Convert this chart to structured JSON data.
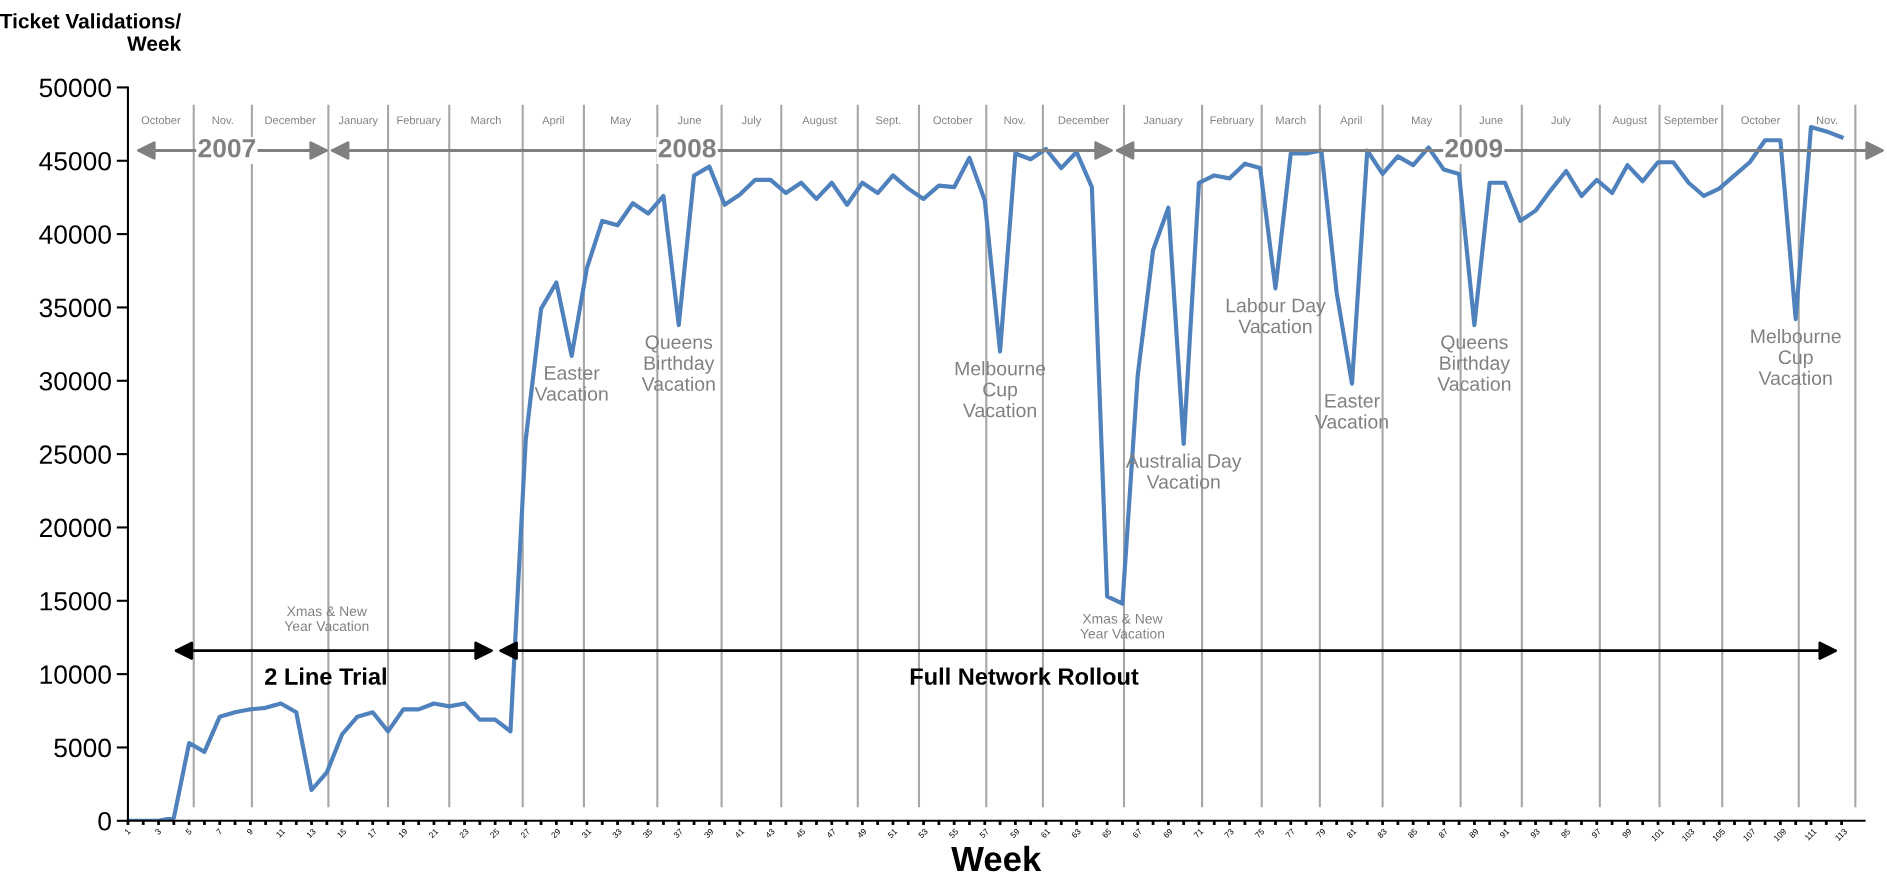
{
  "chart_data": {
    "type": "line",
    "ylabel": "Ticket Validations/\nWeek",
    "xlabel": "Week",
    "x": [
      1,
      2,
      3,
      4,
      5,
      6,
      7,
      8,
      9,
      10,
      11,
      12,
      13,
      14,
      15,
      16,
      17,
      18,
      19,
      20,
      21,
      22,
      23,
      24,
      25,
      26,
      27,
      28,
      29,
      30,
      31,
      32,
      33,
      34,
      35,
      36,
      37,
      38,
      39,
      40,
      41,
      42,
      43,
      44,
      45,
      46,
      47,
      48,
      49,
      50,
      51,
      52,
      53,
      54,
      55,
      56,
      57,
      58,
      59,
      60,
      61,
      62,
      63,
      64,
      65,
      66,
      67,
      68,
      69,
      70,
      71,
      72,
      73,
      74,
      75,
      76,
      77,
      78,
      79,
      80,
      81,
      82,
      83,
      84,
      85,
      86,
      87,
      88,
      89,
      90,
      91,
      92,
      93,
      94,
      95,
      96,
      97,
      98,
      99,
      100,
      101,
      102,
      103,
      104,
      105,
      106,
      107,
      108,
      109,
      110,
      111,
      112,
      113
    ],
    "series": [
      {
        "color": "#4f81bd",
        "values": [
          0,
          0,
          0,
          200,
          5300,
          4700,
          7100,
          7400,
          7600,
          7700,
          8000,
          7400,
          2100,
          3300,
          5900,
          7100,
          7400,
          6100,
          7600,
          7600,
          8000,
          7800,
          8000,
          6900,
          6900,
          6100,
          26000,
          34900,
          36700,
          31700,
          37700,
          40900,
          40600,
          42100,
          41400,
          42600,
          33800,
          44000,
          44600,
          42000,
          42700,
          43700,
          43700,
          42800,
          43500,
          42400,
          43500,
          42000,
          43500,
          42800,
          44000,
          43100,
          42400,
          43300,
          43200,
          45200,
          42300,
          32000,
          45500,
          45100,
          45800,
          44500,
          45600,
          43200,
          15300,
          14800,
          30400,
          38900,
          41800,
          25700,
          43500,
          44000,
          43800,
          44800,
          44500,
          36300,
          45500,
          45500,
          45700,
          36000,
          29800,
          45700,
          44100,
          45300,
          44700,
          45900,
          44400,
          44100,
          33800,
          43500,
          43500,
          40900,
          41600,
          43000,
          44300,
          42600,
          43700,
          42800,
          44700,
          43600,
          44900,
          44900,
          43500,
          42600,
          43100,
          44000,
          44900,
          46400,
          46400,
          34200,
          47300,
          47000,
          46600
        ]
      }
    ],
    "xlim": [
      1,
      114.5
    ],
    "xticks": [
      1,
      {
        "value": 2,
        "label": null
      },
      3,
      {
        "value": 4,
        "label": null
      },
      5,
      {
        "value": 6,
        "label": null
      },
      7,
      {
        "value": 8,
        "label": null
      },
      9,
      {
        "value": 10,
        "label": null
      },
      11,
      {
        "value": 12,
        "label": null
      },
      13,
      {
        "value": 14,
        "label": null
      },
      15,
      {
        "value": 16,
        "label": null
      },
      17,
      {
        "value": 18,
        "label": null
      },
      19,
      {
        "value": 20,
        "label": null
      },
      21,
      {
        "value": 22,
        "label": null
      },
      23,
      {
        "value": 24,
        "label": null
      },
      25,
      {
        "value": 26,
        "label": null
      },
      27,
      {
        "value": 28,
        "label": null
      },
      29,
      {
        "value": 30,
        "label": null
      },
      31,
      {
        "value": 32,
        "label": null
      },
      33,
      {
        "value": 34,
        "label": null
      },
      35,
      {
        "value": 36,
        "label": null
      },
      37,
      {
        "value": 38,
        "label": null
      },
      39,
      {
        "value": 40,
        "label": null
      },
      41,
      {
        "value": 42,
        "label": null
      },
      43,
      {
        "value": 44,
        "label": null
      },
      45,
      {
        "value": 46,
        "label": null
      },
      47,
      {
        "value": 48,
        "label": null
      },
      49,
      {
        "value": 50,
        "label": null
      },
      51,
      {
        "value": 52,
        "label": null
      },
      53,
      {
        "value": 54,
        "label": null
      },
      55,
      {
        "value": 56,
        "label": null
      },
      57,
      {
        "value": 58,
        "label": null
      },
      59,
      {
        "value": 60,
        "label": null
      },
      61,
      {
        "value": 62,
        "label": null
      },
      63,
      {
        "value": 64,
        "label": null
      },
      65,
      {
        "value": 66,
        "label": null
      },
      67,
      {
        "value": 68,
        "label": null
      },
      69,
      {
        "value": 70,
        "label": null
      },
      71,
      {
        "value": 72,
        "label": null
      },
      73,
      {
        "value": 74,
        "label": null
      },
      75,
      {
        "value": 76,
        "label": null
      },
      77,
      {
        "value": 78,
        "label": null
      },
      79,
      {
        "value": 80,
        "label": null
      },
      81,
      {
        "value": 82,
        "label": null
      },
      83,
      {
        "value": 84,
        "label": null
      },
      85,
      {
        "value": 86,
        "label": null
      },
      87,
      {
        "value": 88,
        "label": null
      },
      89,
      {
        "value": 90,
        "label": null
      },
      91,
      {
        "value": 92,
        "label": null
      },
      93,
      {
        "value": 94,
        "label": null
      },
      95,
      {
        "value": 96,
        "label": null
      },
      97,
      {
        "value": 98,
        "label": null
      },
      99,
      {
        "value": 100,
        "label": null
      },
      101,
      {
        "value": 102,
        "label": null
      },
      103,
      {
        "value": 104,
        "label": null
      },
      105,
      {
        "value": 106,
        "label": null
      },
      107,
      {
        "value": 108,
        "label": null
      },
      109,
      {
        "value": 110,
        "label": null
      },
      111,
      {
        "value": 112,
        "label": null
      },
      113
    ],
    "ylim": [
      0,
      50000
    ],
    "yticks": [
      0,
      5000,
      10000,
      15000,
      20000,
      25000,
      30000,
      35000,
      40000,
      45000,
      50000
    ],
    "ref_lines": [
      {
        "axis": "x",
        "value": 5.3,
        "color": "#a6a6a6"
      },
      {
        "axis": "x",
        "value": 9.1,
        "color": "#a6a6a6"
      },
      {
        "axis": "x",
        "value": 14.1,
        "color": "#a6a6a6"
      },
      {
        "axis": "x",
        "value": 18.0,
        "color": "#a6a6a6"
      },
      {
        "axis": "x",
        "value": 22.0,
        "color": "#a6a6a6"
      },
      {
        "axis": "x",
        "value": 26.8,
        "color": "#a6a6a6"
      },
      {
        "axis": "x",
        "value": 30.8,
        "color": "#a6a6a6"
      },
      {
        "axis": "x",
        "value": 35.6,
        "color": "#a6a6a6"
      },
      {
        "axis": "x",
        "value": 39.8,
        "color": "#a6a6a6"
      },
      {
        "axis": "x",
        "value": 43.7,
        "color": "#a6a6a6"
      },
      {
        "axis": "x",
        "value": 48.7,
        "color": "#a6a6a6"
      },
      {
        "axis": "x",
        "value": 52.7,
        "color": "#a6a6a6"
      },
      {
        "axis": "x",
        "value": 57.1,
        "color": "#a6a6a6"
      },
      {
        "axis": "x",
        "value": 60.8,
        "color": "#a6a6a6"
      },
      {
        "axis": "x",
        "value": 66.1,
        "color": "#a6a6a6"
      },
      {
        "axis": "x",
        "value": 71.2,
        "color": "#a6a6a6"
      },
      {
        "axis": "x",
        "value": 75.1,
        "color": "#a6a6a6"
      },
      {
        "axis": "x",
        "value": 78.9,
        "color": "#a6a6a6"
      },
      {
        "axis": "x",
        "value": 83.0,
        "color": "#a6a6a6"
      },
      {
        "axis": "x",
        "value": 88.1,
        "color": "#a6a6a6"
      },
      {
        "axis": "x",
        "value": 92.1,
        "color": "#a6a6a6"
      },
      {
        "axis": "x",
        "value": 97.2,
        "color": "#a6a6a6"
      },
      {
        "axis": "x",
        "value": 101.1,
        "color": "#a6a6a6"
      },
      {
        "axis": "x",
        "value": 105.2,
        "color": "#a6a6a6"
      },
      {
        "axis": "x",
        "value": 110.2,
        "color": "#a6a6a6"
      },
      {
        "axis": "x",
        "value": 113.9,
        "color": "#a6a6a6"
      }
    ],
    "annotations": [
      "October",
      "Nov.",
      "December",
      "January",
      "February",
      "March",
      "April",
      "May",
      "June",
      "July",
      "August",
      "Sept.",
      "October",
      "Nov.",
      "December",
      "January",
      "February",
      "March",
      "April",
      "May",
      "June",
      "July",
      "August",
      "September",
      "October",
      "Nov.",
      "2007",
      "2008",
      "2009",
      "2 Line Trial",
      "Full Network Rollout",
      "Xmas & New\nYear Vacation",
      {
        "text": "Easter\nVacation",
        "x": 30,
        "y": 31700
      },
      {
        "text": "Queens\nBirthday\nVacation",
        "x": 37,
        "y": 33800
      },
      {
        "text": "Melbourne\nCup\nVacation",
        "x": 58,
        "y": 32000
      },
      {
        "text": "Xmas & New\nYear Vacation",
        "x": 66,
        "y": 14800
      },
      {
        "text": "Australia Day\nVacation",
        "x": 70,
        "y": 25700
      },
      {
        "text": "Labour Day\nVacation",
        "x": 76,
        "y": 36300
      },
      {
        "text": "Easter\nVacation",
        "x": 81,
        "y": 29800
      },
      {
        "text": "Queens\nBirthday\nVacation",
        "x": 89,
        "y": 33800
      },
      {
        "text": "Melbourne\nCup\nVacation",
        "x": 110,
        "y": 34200
      }
    ]
  }
}
